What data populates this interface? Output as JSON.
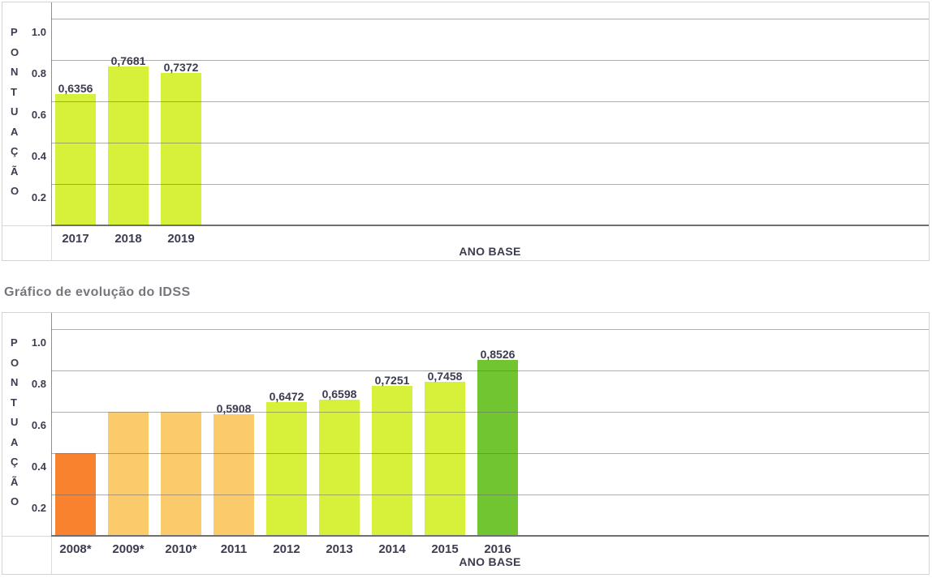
{
  "page": {
    "background": "#ffffff"
  },
  "section_title": "Gráfico de evolução do IDSS",
  "charts_common": {
    "y_axis_letters": [
      "P",
      "O",
      "N",
      "T",
      "U",
      "A",
      "Ç",
      "Ã",
      "O"
    ],
    "y_axis_word": "PONTUAÇÃO",
    "x_axis_title": "ANO BASE",
    "y_tick_labels": [
      "1.0",
      "0.8",
      "0.6",
      "0.4",
      "0.2"
    ]
  },
  "colors": {
    "yellow_green_bar": "#d7f13b",
    "dark_green_bar": "#70c531",
    "orange_bar": "#f8822e",
    "amber_bar": "#fbca6a",
    "text_dark": "#3c3c50",
    "title_gray": "#76767c",
    "gridline": "rgba(105,105,105,0.55)",
    "axis_line": "#6f6f6f",
    "box_border": "#d4d4d4"
  },
  "chart_data": [
    {
      "type": "bar",
      "title": "",
      "xlabel": "ANO BASE",
      "ylabel": "PONTUAÇÃO",
      "ylim": [
        0,
        1.08
      ],
      "grid": true,
      "gridline_values": [
        1.0,
        0.8,
        0.6,
        0.4,
        0.2
      ],
      "y_tick_labels": [
        "1.0",
        "0.8",
        "0.6",
        "0.4",
        "0.2"
      ],
      "categories": [
        "2017",
        "2018",
        "2019"
      ],
      "values": [
        0.6356,
        0.7681,
        0.7372
      ],
      "value_labels": [
        "0,6356",
        "0,7681",
        "0,7372"
      ],
      "bar_colors": [
        "#d7f13b",
        "#d7f13b",
        "#d7f13b"
      ]
    },
    {
      "type": "bar",
      "title": "Gráfico de evolução do IDSS",
      "xlabel": "ANO BASE",
      "ylabel": "PONTUAÇÃO",
      "ylim": [
        0,
        1.08
      ],
      "grid": true,
      "gridline_values": [
        1.0,
        0.8,
        0.6,
        0.4,
        0.2
      ],
      "y_tick_labels": [
        "1.0",
        "0.8",
        "0.6",
        "0.4",
        "0.2"
      ],
      "categories": [
        "2008*",
        "2009*",
        "2010*",
        "2011",
        "2012",
        "2013",
        "2014",
        "2015",
        "2016"
      ],
      "values": [
        0.4,
        0.6,
        0.6,
        0.5908,
        0.6472,
        0.6598,
        0.7251,
        0.7458,
        0.8526
      ],
      "value_labels": [
        "",
        "",
        "",
        "0,5908",
        "0,6472",
        "0,6598",
        "0,7251",
        "0,7458",
        "0,8526"
      ],
      "bar_colors": [
        "#f8822e",
        "#fbca6a",
        "#fbca6a",
        "#fbca6a",
        "#d7f13b",
        "#d7f13b",
        "#d7f13b",
        "#d7f13b",
        "#70c531"
      ]
    }
  ]
}
